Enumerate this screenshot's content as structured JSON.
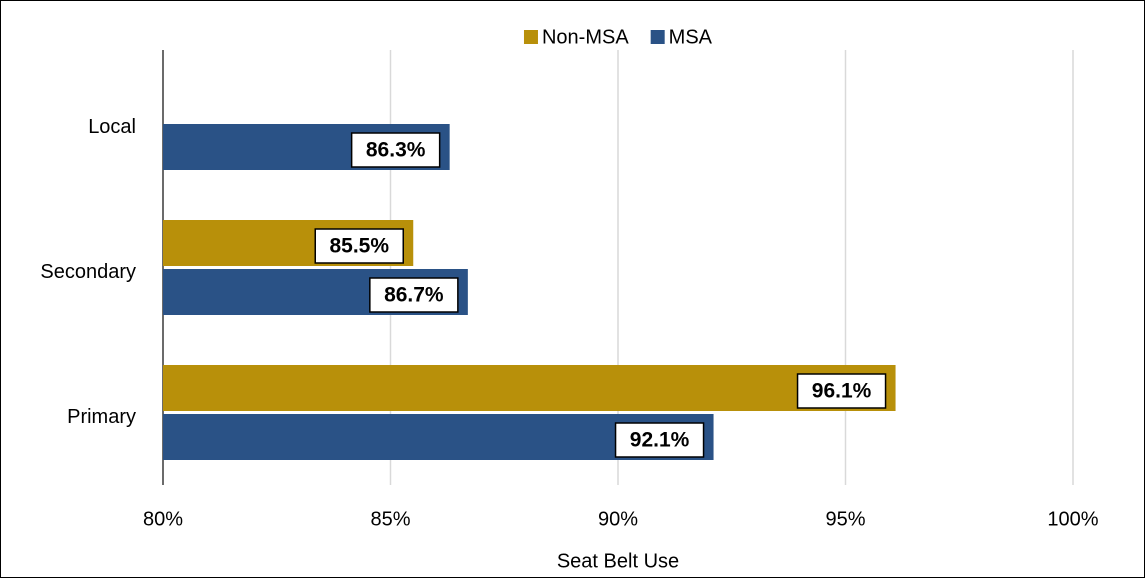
{
  "chart_data": {
    "type": "hbar",
    "categories": [
      "Local",
      "Secondary",
      "Primary"
    ],
    "series": [
      {
        "name": "Non-MSA",
        "color": "#b8900a",
        "values": [
          null,
          85.5,
          96.1
        ],
        "value_labels": [
          null,
          "85.5%",
          "96.1%"
        ]
      },
      {
        "name": "MSA",
        "color": "#2a5286",
        "values": [
          86.3,
          86.7,
          92.1
        ],
        "value_labels": [
          "86.3%",
          "86.7%",
          "92.1%"
        ]
      }
    ],
    "xlabel": "Seat Belt Use",
    "xlim": [
      80,
      100
    ],
    "xticks": [
      {
        "value": 80,
        "label": "80%"
      },
      {
        "value": 85,
        "label": "85%"
      },
      {
        "value": 90,
        "label": "90%"
      },
      {
        "value": 95,
        "label": "95%"
      },
      {
        "value": 100,
        "label": "100%"
      }
    ],
    "grid": true,
    "legend": "top"
  }
}
